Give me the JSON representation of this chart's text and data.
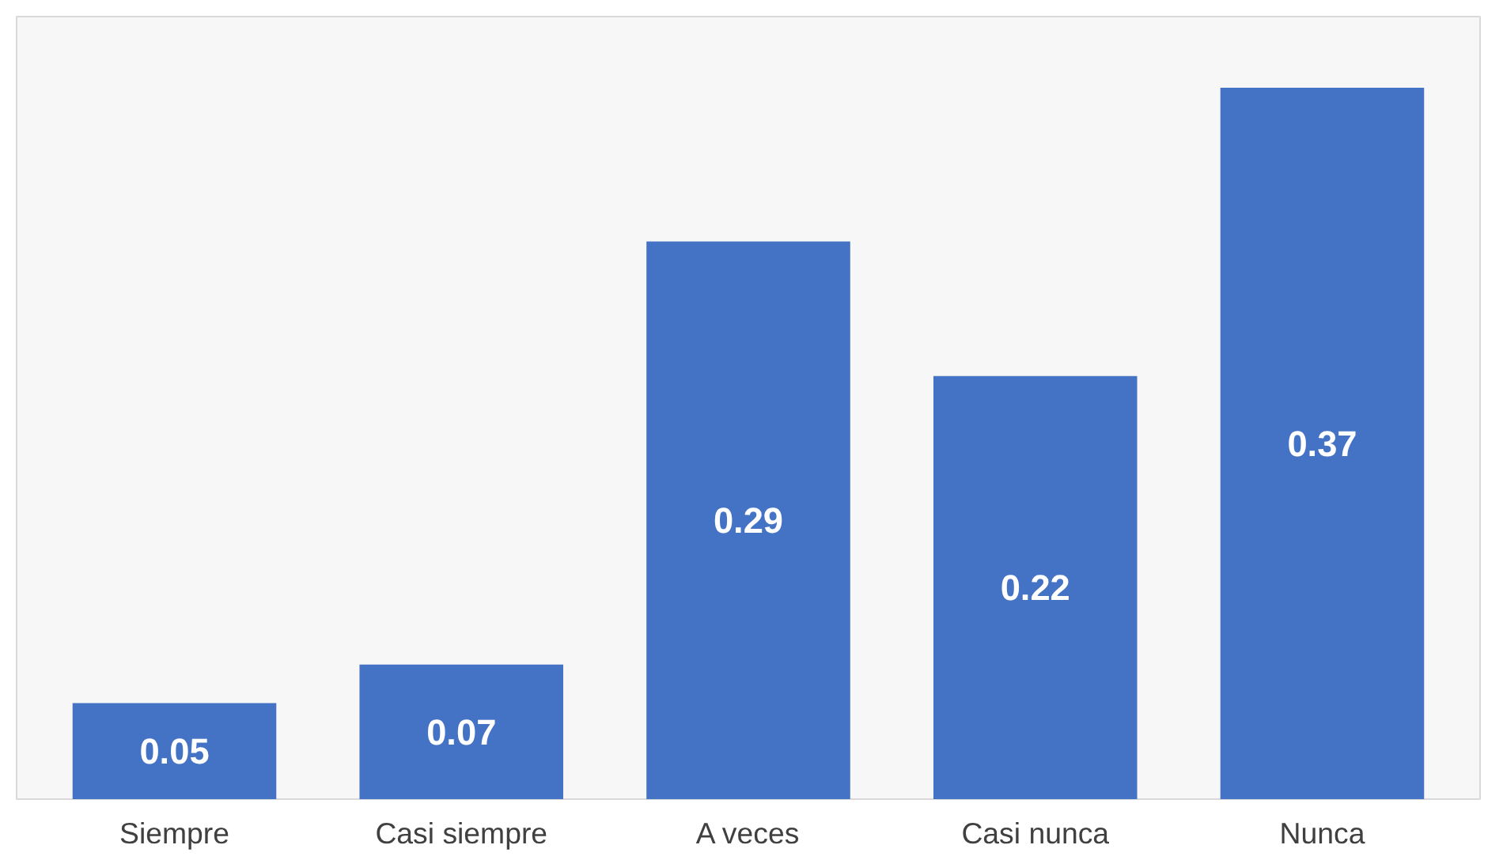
{
  "chart_data": {
    "type": "bar",
    "categories": [
      "Siempre",
      "Casi siempre",
      "A veces",
      "Casi nunca",
      "Nunca"
    ],
    "values": [
      0.05,
      0.07,
      0.29,
      0.22,
      0.37
    ],
    "color": "#4472c4",
    "data_labels": true
  }
}
